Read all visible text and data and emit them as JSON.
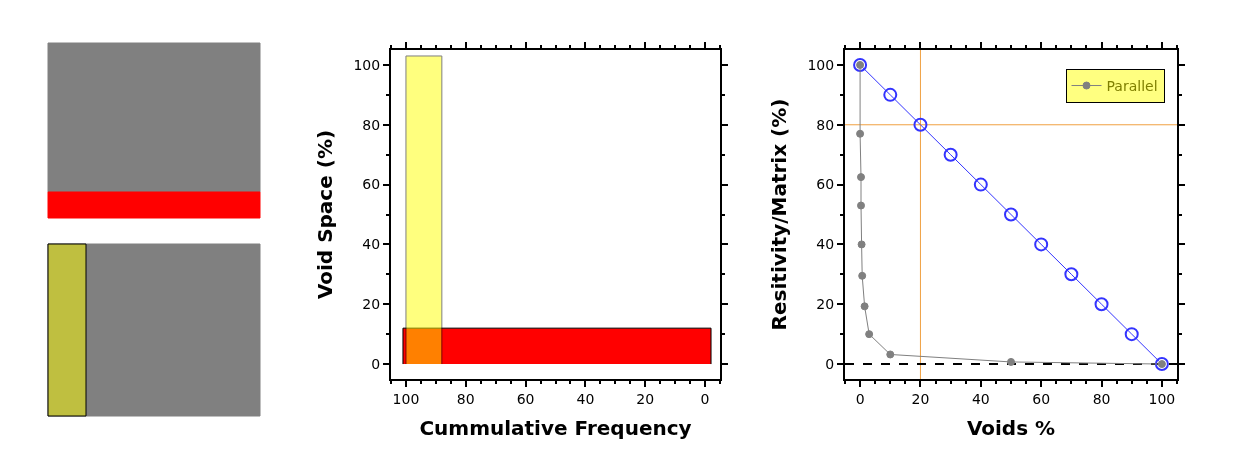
{
  "chart_data": [
    {
      "type": "area",
      "xlabel": "Cummulative Frequency",
      "ylabel": "Void Space (%)",
      "xlim": [
        105,
        -5
      ],
      "xticks": [
        100,
        80,
        60,
        40,
        20,
        0
      ],
      "ylim": [
        -5,
        105
      ],
      "yticks": [
        0,
        20,
        40,
        60,
        80,
        100
      ],
      "series": [
        {
          "color": "#ff0000",
          "x": [
            101,
            -2
          ],
          "values": [
            12,
            12
          ]
        },
        {
          "color": "#ffff00",
          "x": [
            100,
            88
          ],
          "values": [
            103,
            103
          ]
        }
      ]
    },
    {
      "type": "line",
      "xlabel": "Voids %",
      "ylabel": "Resitivity/Matrix (%)",
      "xlim": [
        -5,
        105
      ],
      "xticks": [
        0,
        20,
        40,
        60,
        80,
        100
      ],
      "ylim": [
        -5,
        105
      ],
      "yticks": [
        0,
        20,
        40,
        60,
        80,
        100
      ],
      "grid": false,
      "legend": "top right",
      "series": [
        {
          "color": "#3333ff",
          "marker": "circle",
          "x": [
            0,
            10,
            20,
            30,
            40,
            50,
            60,
            70,
            80,
            90,
            100
          ],
          "values": [
            100,
            90,
            80,
            70,
            60,
            50,
            40,
            30,
            20,
            10,
            0
          ]
        },
        {
          "name": "Parallel",
          "color": "#808080",
          "marker": "circle",
          "x": [
            0,
            0,
            0.3,
            0.3,
            0.5,
            0.7,
            1.5,
            3,
            10,
            50,
            100
          ],
          "values": [
            100,
            77,
            62.5,
            53,
            40,
            29.5,
            19.3,
            10,
            3.2,
            0.7,
            0
          ]
        }
      ],
      "ref_lines": [
        {
          "axis": "x",
          "value": 20,
          "color": "#f0a040",
          "line_style": "solid"
        },
        {
          "axis": "y",
          "value": 80,
          "color": "#f0a040",
          "line_style": "solid"
        },
        {
          "axis": "y",
          "value": 0,
          "color": "#000000",
          "line_style": "dashed"
        }
      ]
    }
  ]
}
